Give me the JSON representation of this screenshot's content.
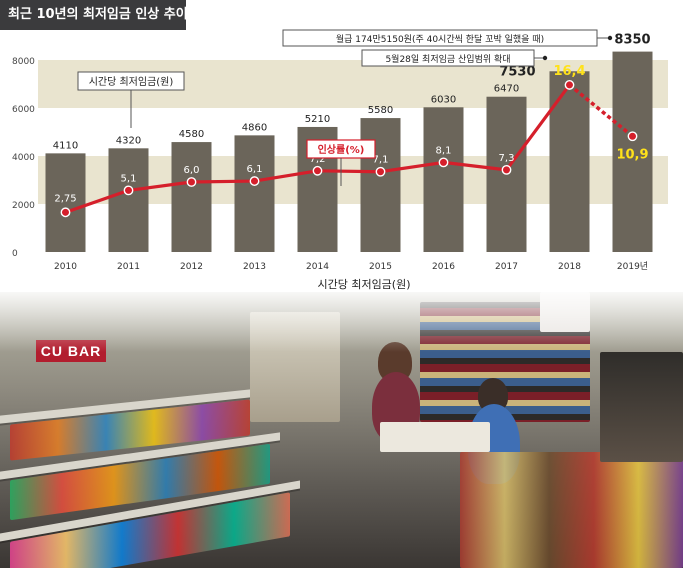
{
  "title": "최근 10년의 최저임금 인상 추이",
  "legend_hourly": "시간당 최저임금(원)",
  "legend_rate": "인상률(%)",
  "annotations": {
    "monthly_pay": "월급 174만5150원(주 40시간씩 한달 꼬박 일했을 때)",
    "range_decision": "5월28일 최저임금 산입범위 확대"
  },
  "x_axis_title": "시간당 최저임금(원)",
  "photo": {
    "sign_text": "CU BAR"
  },
  "colors": {
    "bar": "#6b655a",
    "band": "#e9e4cf",
    "line": "#d51f2b",
    "highlight_label": "#ffe21a",
    "title_bg": "#3b3b3d"
  },
  "chart_data": {
    "type": "bar",
    "categories": [
      "2010",
      "2011",
      "2012",
      "2013",
      "2014",
      "2015",
      "2016",
      "2017",
      "2018",
      "2019년"
    ],
    "series": [
      {
        "name": "시간당 최저임금(원)",
        "type": "bar",
        "values": [
          4110,
          4320,
          4580,
          4860,
          5210,
          5580,
          6030,
          6470,
          7530,
          8350
        ],
        "value_labels": [
          "4110",
          "4320",
          "4580",
          "4860",
          "5210",
          "5580",
          "6030",
          "6470",
          "7530",
          "8350"
        ]
      },
      {
        "name": "인상률(%)",
        "type": "line",
        "values": [
          2.75,
          5.1,
          6.0,
          6.1,
          7.2,
          7.1,
          8.1,
          7.3,
          16.4,
          10.9
        ],
        "value_labels": [
          "2,75",
          "5,1",
          "6,0",
          "6,1",
          "7,2",
          "7,1",
          "8,1",
          "7,3",
          "16,4",
          "10,9"
        ]
      }
    ],
    "y_ticks": [
      "0",
      "2000",
      "4000",
      "6000",
      "8000"
    ],
    "ylim": [
      0,
      8000
    ],
    "rate_scale": [
      0,
      18
    ],
    "grid": "alternating horizontal bands"
  }
}
